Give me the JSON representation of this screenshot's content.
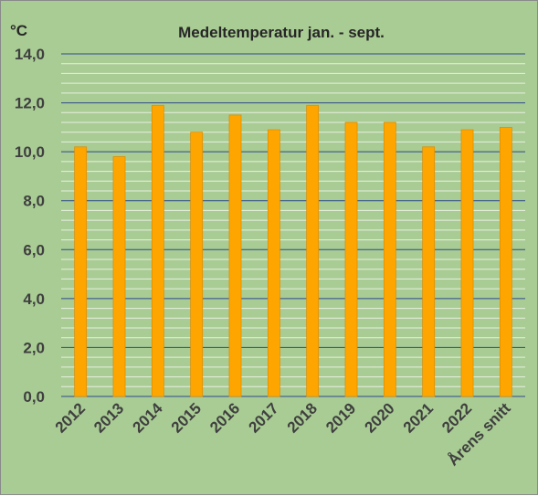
{
  "chart_data": {
    "type": "bar",
    "title": "Medeltemperatur  jan. - sept.",
    "ylabel": "°C",
    "xlabel": "",
    "categories": [
      "2012",
      "2013",
      "2014",
      "2015",
      "2016",
      "2017",
      "2018",
      "2019",
      "2020",
      "2021",
      "2022",
      "Årens snitt"
    ],
    "values": [
      10.2,
      9.8,
      11.9,
      10.8,
      11.5,
      10.9,
      11.9,
      11.2,
      11.2,
      10.2,
      10.9,
      11.0
    ],
    "ylim": [
      0,
      14
    ],
    "yticks": [
      "0,0",
      "2,0",
      "4,0",
      "6,0",
      "8,0",
      "10,0",
      "12,0",
      "14,0"
    ],
    "grid": true,
    "legend": "none",
    "colors": {
      "background": "#a9cc94",
      "bar_fill": "#ffa500",
      "bar_stroke": "#e08e00",
      "major_grid": "#2e4a8c",
      "minor_grid": "#e8f0e0"
    }
  }
}
